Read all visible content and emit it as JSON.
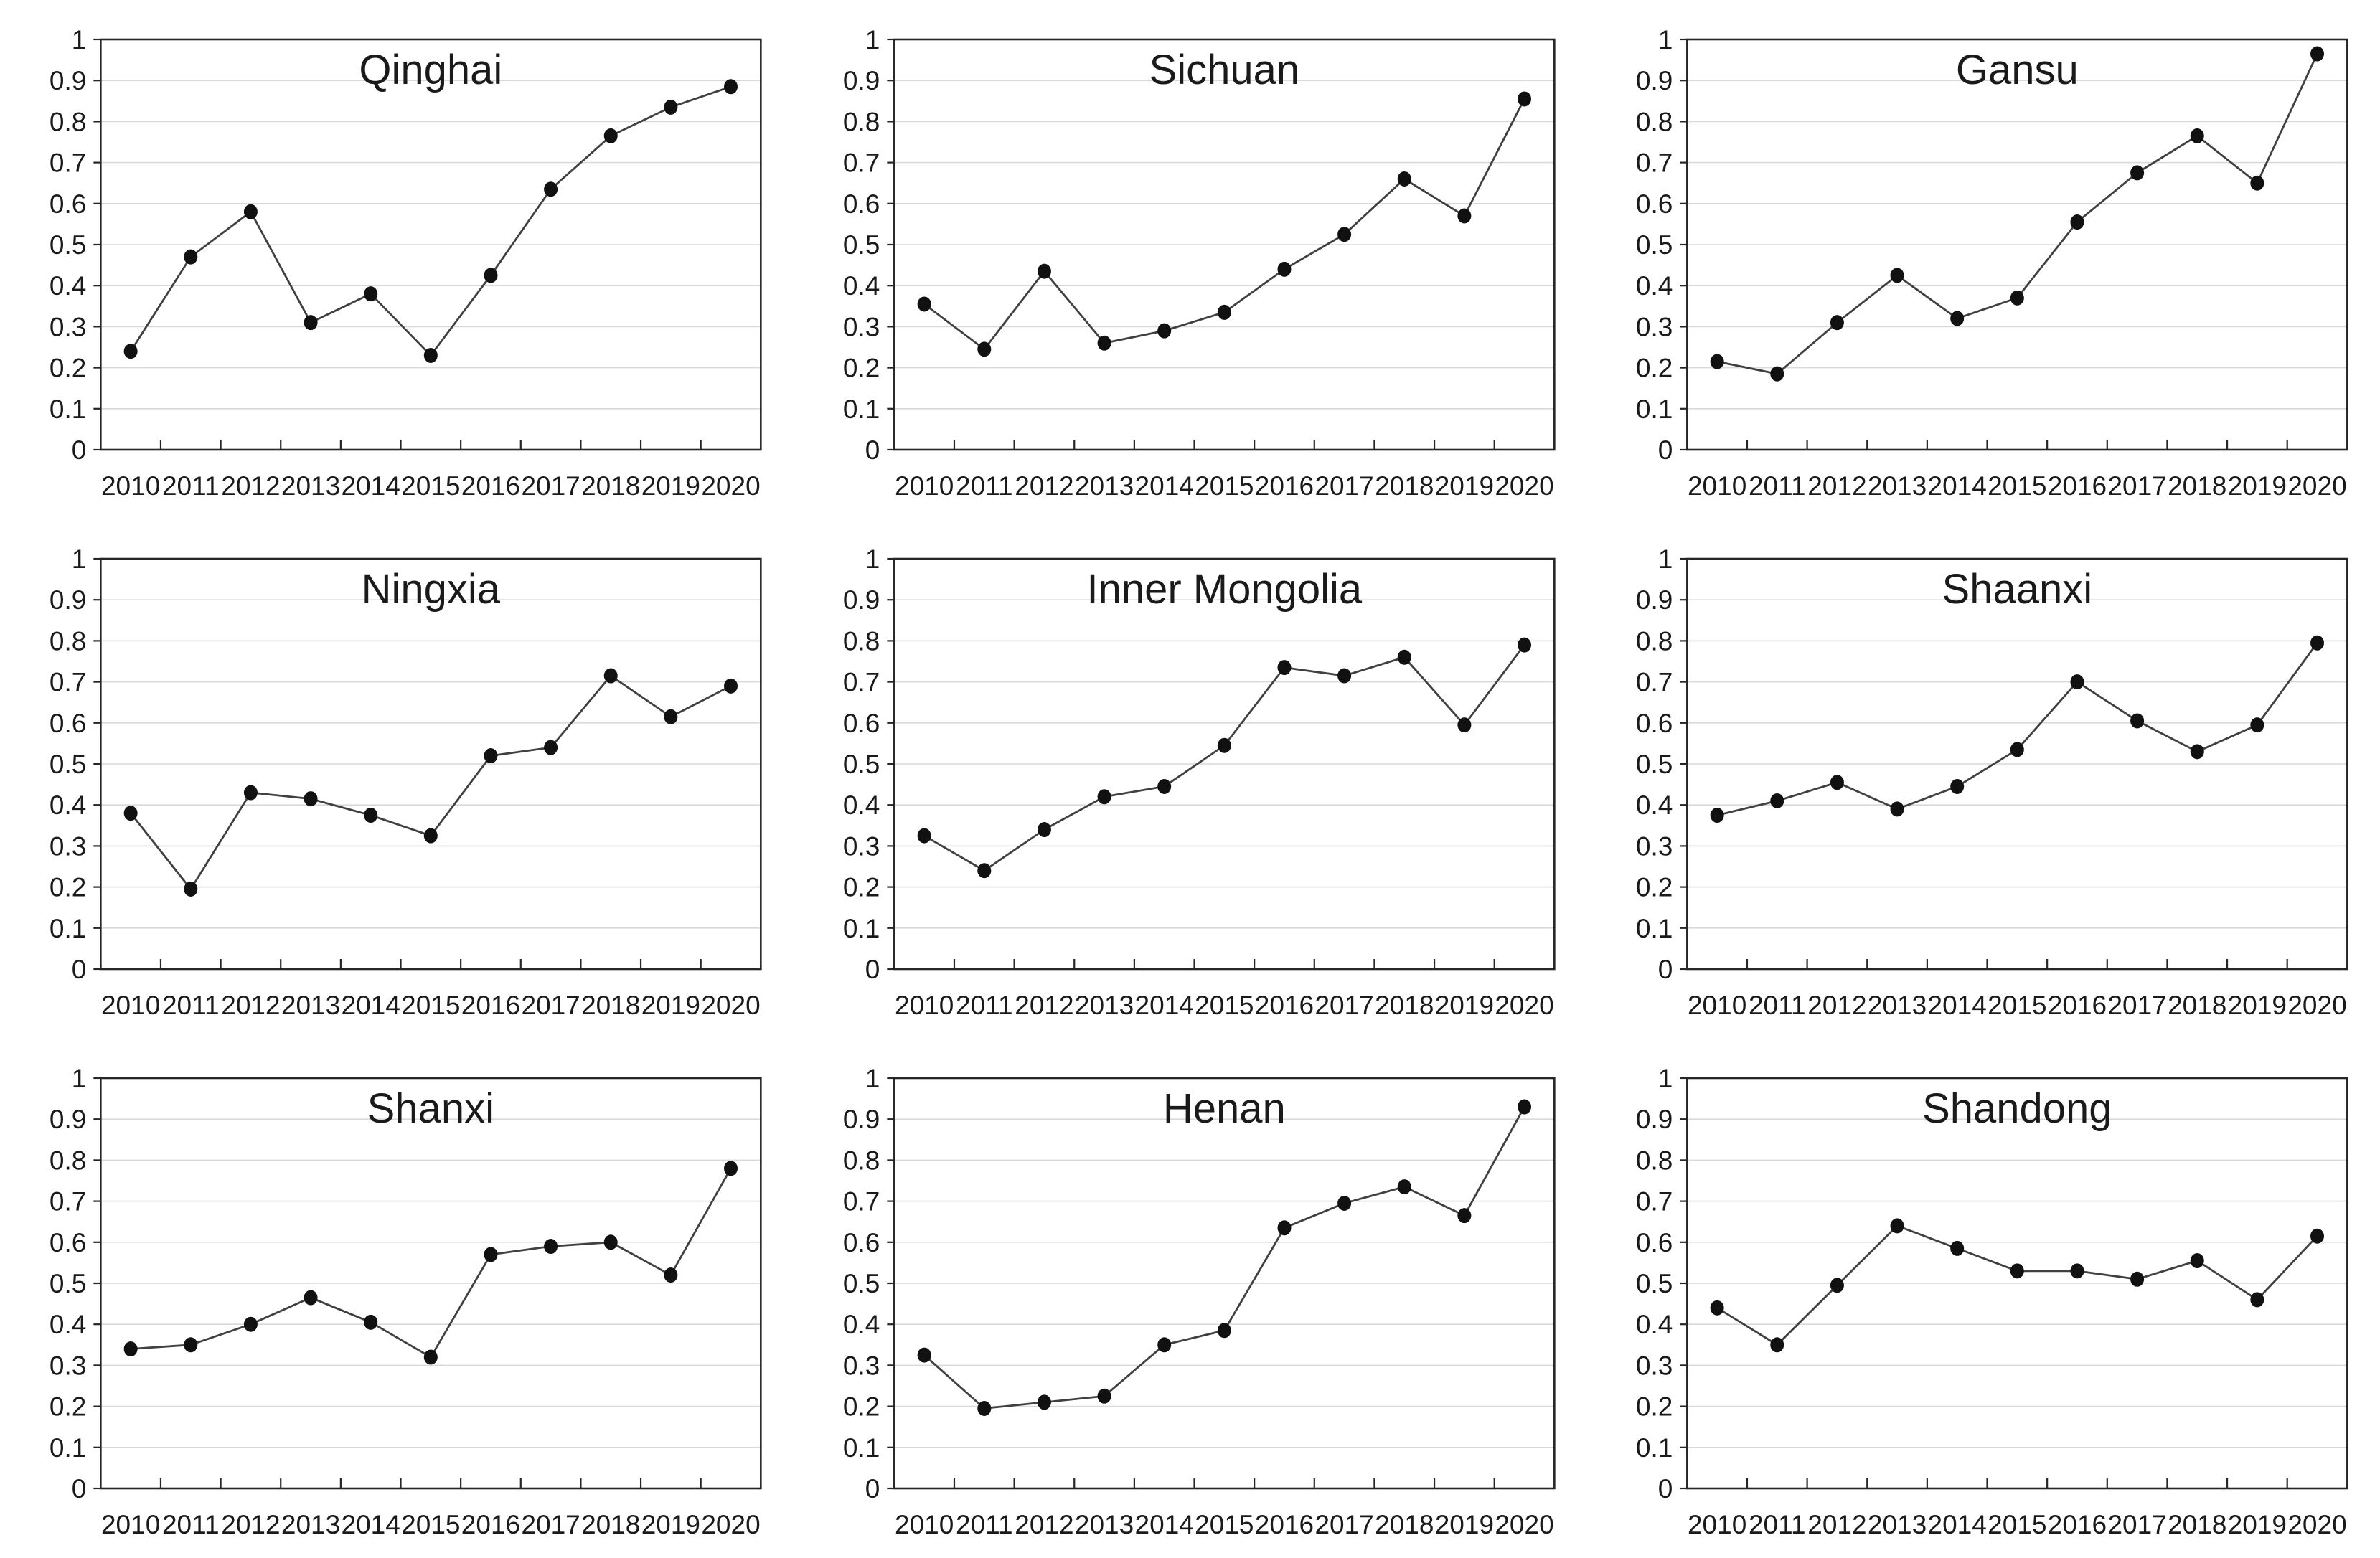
{
  "style": {
    "background": "#ffffff",
    "axis_color": "#262626",
    "grid_color": "#d9d9d9",
    "line_color": "#404040",
    "marker_color": "#111111",
    "text_color": "#1a1a1a"
  },
  "chart_data": [
    {
      "type": "line",
      "title": "Qinghai",
      "categories": [
        "2010",
        "2011",
        "2012",
        "2013",
        "2014",
        "2015",
        "2016",
        "2017",
        "2018",
        "2019",
        "2020"
      ],
      "values": [
        0.24,
        0.47,
        0.58,
        0.31,
        0.38,
        0.23,
        0.425,
        0.635,
        0.765,
        0.835,
        0.885
      ],
      "ylim": [
        0,
        1
      ],
      "ytick_labels": [
        "0",
        "0.1",
        "0.2",
        "0.3",
        "0.4",
        "0.5",
        "0.6",
        "0.7",
        "0.8",
        "0.9",
        "1"
      ],
      "grid": true,
      "legend": "none",
      "marker": "circle"
    },
    {
      "type": "line",
      "title": "Sichuan",
      "categories": [
        "2010",
        "2011",
        "2012",
        "2013",
        "2014",
        "2015",
        "2016",
        "2017",
        "2018",
        "2019",
        "2020"
      ],
      "values": [
        0.355,
        0.245,
        0.435,
        0.26,
        0.29,
        0.335,
        0.44,
        0.525,
        0.66,
        0.57,
        0.855
      ],
      "ylim": [
        0,
        1
      ],
      "ytick_labels": [
        "0",
        "0.1",
        "0.2",
        "0.3",
        "0.4",
        "0.5",
        "0.6",
        "0.7",
        "0.8",
        "0.9",
        "1"
      ],
      "grid": true,
      "legend": "none",
      "marker": "circle"
    },
    {
      "type": "line",
      "title": "Gansu",
      "categories": [
        "2010",
        "2011",
        "2012",
        "2013",
        "2014",
        "2015",
        "2016",
        "2017",
        "2018",
        "2019",
        "2020"
      ],
      "values": [
        0.215,
        0.185,
        0.31,
        0.425,
        0.32,
        0.37,
        0.555,
        0.675,
        0.765,
        0.65,
        0.965
      ],
      "ylim": [
        0,
        1
      ],
      "ytick_labels": [
        "0",
        "0.1",
        "0.2",
        "0.3",
        "0.4",
        "0.5",
        "0.6",
        "0.7",
        "0.8",
        "0.9",
        "1"
      ],
      "grid": true,
      "legend": "none",
      "marker": "circle"
    },
    {
      "type": "line",
      "title": "Ningxia",
      "categories": [
        "2010",
        "2011",
        "2012",
        "2013",
        "2014",
        "2015",
        "2016",
        "2017",
        "2018",
        "2019",
        "2020"
      ],
      "values": [
        0.38,
        0.195,
        0.43,
        0.415,
        0.375,
        0.325,
        0.52,
        0.54,
        0.715,
        0.615,
        0.69
      ],
      "ylim": [
        0,
        1
      ],
      "ytick_labels": [
        "0",
        "0.1",
        "0.2",
        "0.3",
        "0.4",
        "0.5",
        "0.6",
        "0.7",
        "0.8",
        "0.9",
        "1"
      ],
      "grid": true,
      "legend": "none",
      "marker": "circle"
    },
    {
      "type": "line",
      "title": "Inner Mongolia",
      "categories": [
        "2010",
        "2011",
        "2012",
        "2013",
        "2014",
        "2015",
        "2016",
        "2017",
        "2018",
        "2019",
        "2020"
      ],
      "values": [
        0.325,
        0.24,
        0.34,
        0.42,
        0.445,
        0.545,
        0.735,
        0.715,
        0.76,
        0.595,
        0.79
      ],
      "ylim": [
        0,
        1
      ],
      "ytick_labels": [
        "0",
        "0.1",
        "0.2",
        "0.3",
        "0.4",
        "0.5",
        "0.6",
        "0.7",
        "0.8",
        "0.9",
        "1"
      ],
      "grid": true,
      "legend": "none",
      "marker": "circle"
    },
    {
      "type": "line",
      "title": "Shaanxi",
      "categories": [
        "2010",
        "2011",
        "2012",
        "2013",
        "2014",
        "2015",
        "2016",
        "2017",
        "2018",
        "2019",
        "2020"
      ],
      "values": [
        0.375,
        0.41,
        0.455,
        0.39,
        0.445,
        0.535,
        0.7,
        0.605,
        0.53,
        0.595,
        0.795
      ],
      "ylim": [
        0,
        1
      ],
      "ytick_labels": [
        "0",
        "0.1",
        "0.2",
        "0.3",
        "0.4",
        "0.5",
        "0.6",
        "0.7",
        "0.8",
        "0.9",
        "1"
      ],
      "grid": true,
      "legend": "none",
      "marker": "circle"
    },
    {
      "type": "line",
      "title": "Shanxi",
      "categories": [
        "2010",
        "2011",
        "2012",
        "2013",
        "2014",
        "2015",
        "2016",
        "2017",
        "2018",
        "2019",
        "2020"
      ],
      "values": [
        0.34,
        0.35,
        0.4,
        0.465,
        0.405,
        0.32,
        0.57,
        0.59,
        0.6,
        0.52,
        0.78
      ],
      "ylim": [
        0,
        1
      ],
      "ytick_labels": [
        "0",
        "0.1",
        "0.2",
        "0.3",
        "0.4",
        "0.5",
        "0.6",
        "0.7",
        "0.8",
        "0.9",
        "1"
      ],
      "grid": true,
      "legend": "none",
      "marker": "circle"
    },
    {
      "type": "line",
      "title": "Henan",
      "categories": [
        "2010",
        "2011",
        "2012",
        "2013",
        "2014",
        "2015",
        "2016",
        "2017",
        "2018",
        "2019",
        "2020"
      ],
      "values": [
        0.325,
        0.195,
        0.21,
        0.225,
        0.35,
        0.385,
        0.635,
        0.695,
        0.735,
        0.665,
        0.93
      ],
      "ylim": [
        0,
        1
      ],
      "ytick_labels": [
        "0",
        "0.1",
        "0.2",
        "0.3",
        "0.4",
        "0.5",
        "0.6",
        "0.7",
        "0.8",
        "0.9",
        "1"
      ],
      "grid": true,
      "legend": "none",
      "marker": "circle"
    },
    {
      "type": "line",
      "title": "Shandong",
      "categories": [
        "2010",
        "2011",
        "2012",
        "2013",
        "2014",
        "2015",
        "2016",
        "2017",
        "2018",
        "2019",
        "2020"
      ],
      "values": [
        0.44,
        0.35,
        0.495,
        0.64,
        0.585,
        0.53,
        0.53,
        0.51,
        0.555,
        0.46,
        0.615
      ],
      "ylim": [
        0,
        1
      ],
      "ytick_labels": [
        "0",
        "0.1",
        "0.2",
        "0.3",
        "0.4",
        "0.5",
        "0.6",
        "0.7",
        "0.8",
        "0.9",
        "1"
      ],
      "grid": true,
      "legend": "none",
      "marker": "circle"
    }
  ]
}
